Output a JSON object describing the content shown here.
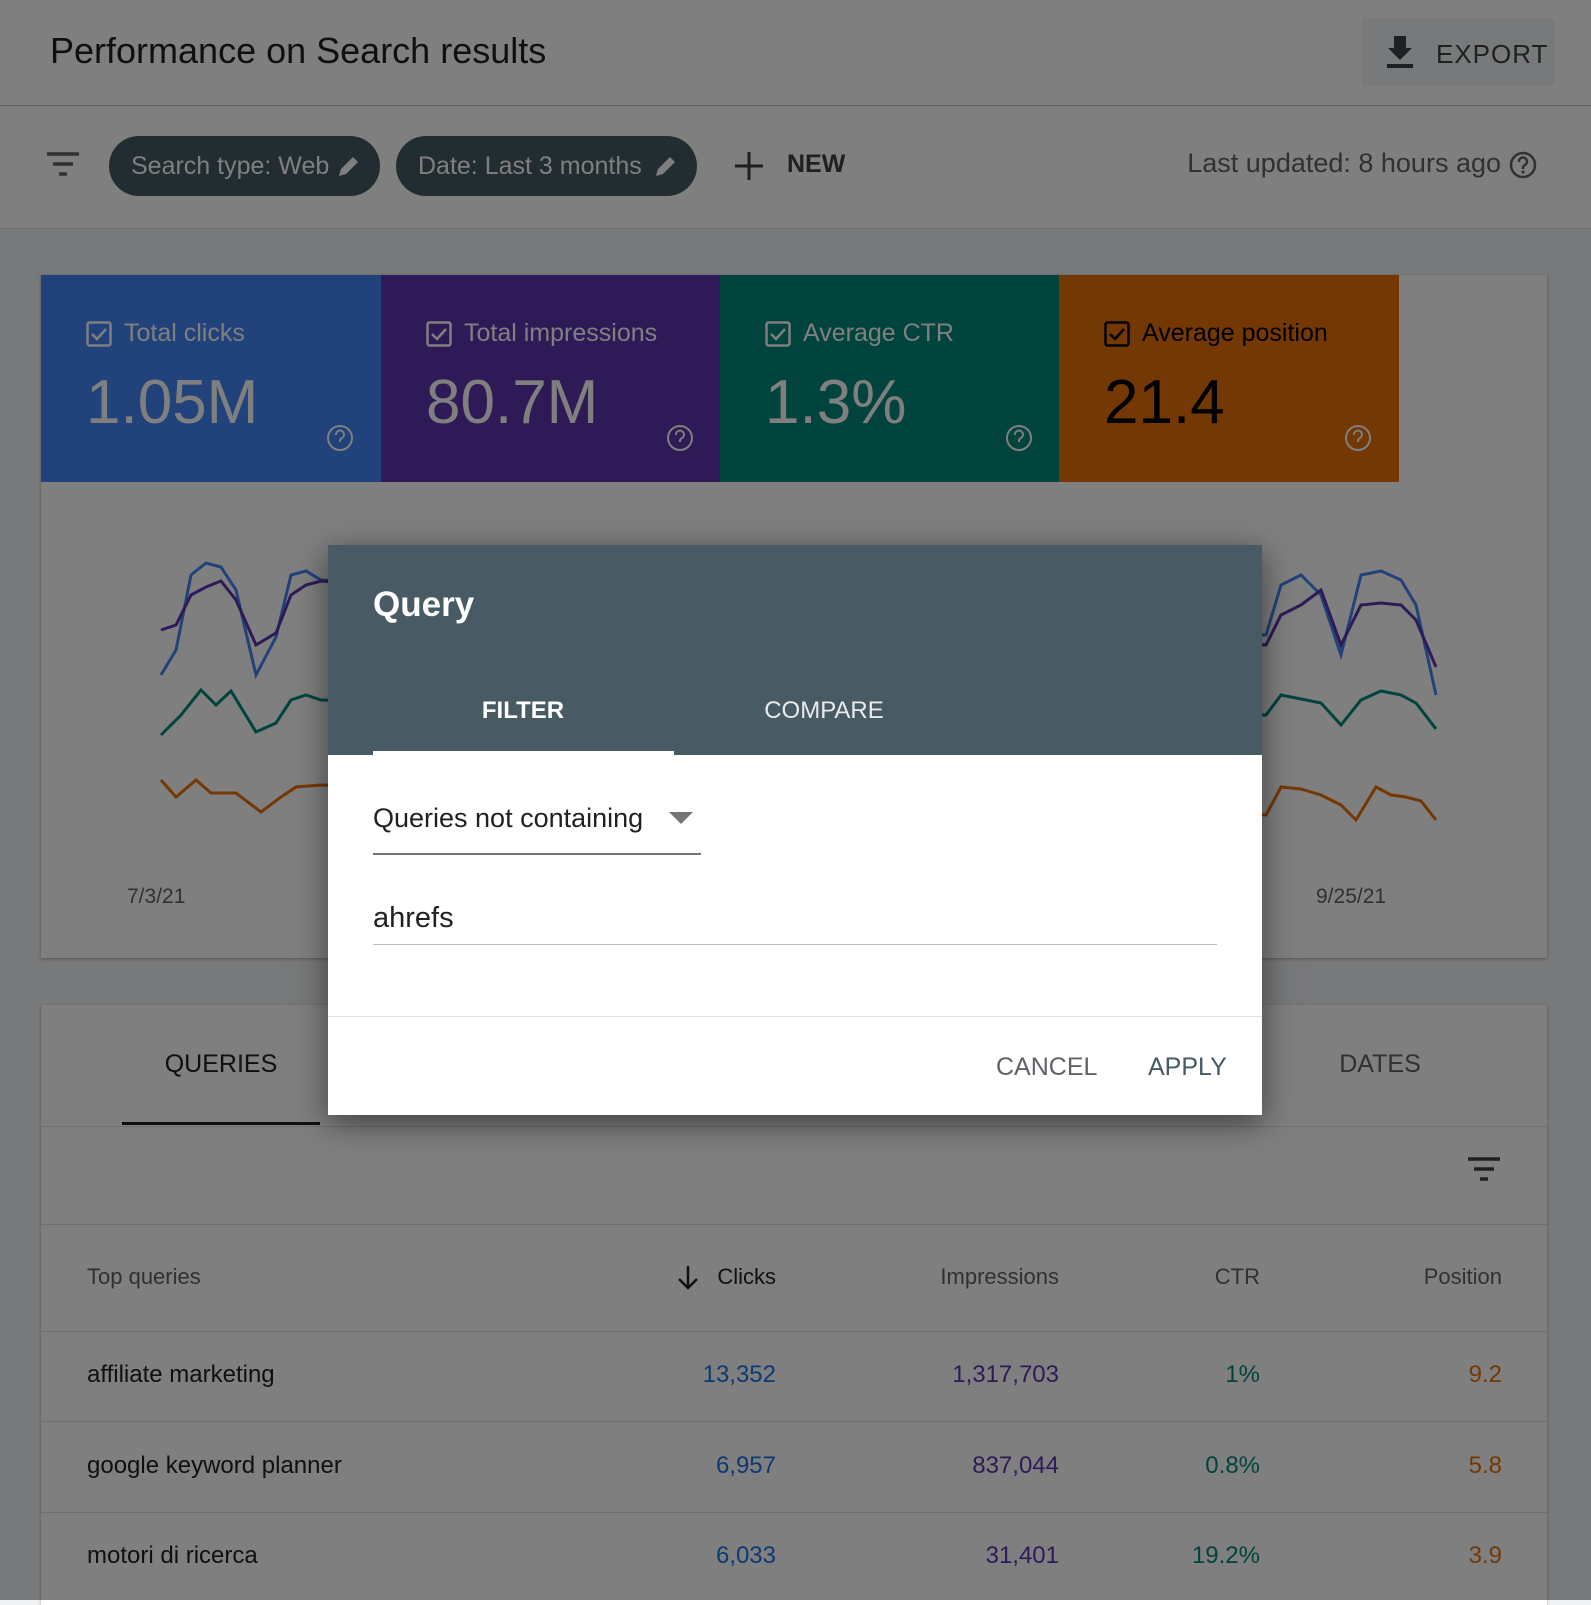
{
  "header": {
    "title": "Performance on Search results",
    "export": "EXPORT"
  },
  "filters": {
    "chips": [
      "Search type: Web",
      "Date: Last 3 months"
    ],
    "new": "NEW",
    "last_updated": "Last updated: 8 hours ago"
  },
  "metrics": [
    {
      "label": "Total clicks",
      "value": "1.05M"
    },
    {
      "label": "Total impressions",
      "value": "80.7M"
    },
    {
      "label": "Average CTR",
      "value": "1.3%"
    },
    {
      "label": "Average position",
      "value": "21.4"
    }
  ],
  "chart": {
    "x_labels": [
      "7/3/21",
      "9/25/21"
    ]
  },
  "dialog": {
    "title": "Query",
    "tabs": [
      "FILTER",
      "COMPARE"
    ],
    "select": "Queries not containing",
    "input": "ahrefs",
    "cancel": "CANCEL",
    "apply": "APPLY"
  },
  "table": {
    "tabs": [
      "QUERIES",
      "DATES"
    ],
    "headers": [
      "Top queries",
      "Clicks",
      "Impressions",
      "CTR",
      "Position"
    ],
    "rows": [
      [
        "affiliate marketing",
        "13,352",
        "1,317,703",
        "1%",
        "9.2"
      ],
      [
        "google keyword planner",
        "6,957",
        "837,044",
        "0.8%",
        "5.8"
      ],
      [
        "motori di ricerca",
        "6,033",
        "31,401",
        "19.2%",
        "3.9"
      ]
    ]
  }
}
